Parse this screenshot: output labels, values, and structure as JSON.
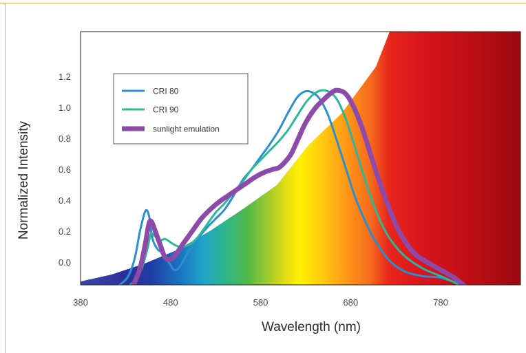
{
  "chart_data": {
    "type": "line",
    "title": "",
    "xlabel": "Wavelength (nm)",
    "ylabel": "Normalized Intensity",
    "xlim": [
      380,
      840
    ],
    "ylim": [
      -0.16,
      1.5
    ],
    "x_ticks": [
      380,
      480,
      580,
      680,
      780
    ],
    "x_tick_labels": [
      "380",
      "480",
      "580",
      "680",
      "780"
    ],
    "y_ticks": [
      0.0,
      0.2,
      0.4,
      0.6,
      0.8,
      1.0,
      1.2
    ],
    "y_tick_labels": [
      "0.0",
      "0.2",
      "0.4",
      "0.6",
      "0.8",
      "1.0",
      "1.2"
    ],
    "grid": false,
    "legend_position": "top-left",
    "background": "visible-spectrum gradient wedge",
    "series": [
      {
        "name": "CRI 80",
        "color": "#2a8fd0",
        "points": [
          [
            420,
            -0.16
          ],
          [
            432,
            -0.1
          ],
          [
            440,
            0.02
          ],
          [
            446,
            0.2
          ],
          [
            452,
            0.33
          ],
          [
            456,
            0.3
          ],
          [
            460,
            0.15
          ],
          [
            466,
            0.08
          ],
          [
            472,
            0.06
          ],
          [
            478,
            0.0
          ],
          [
            484,
            -0.05
          ],
          [
            490,
            -0.03
          ],
          [
            500,
            0.07
          ],
          [
            510,
            0.15
          ],
          [
            520,
            0.22
          ],
          [
            530,
            0.28
          ],
          [
            540,
            0.34
          ],
          [
            550,
            0.43
          ],
          [
            560,
            0.53
          ],
          [
            570,
            0.6
          ],
          [
            580,
            0.68
          ],
          [
            590,
            0.76
          ],
          [
            600,
            0.85
          ],
          [
            610,
            0.96
          ],
          [
            620,
            1.06
          ],
          [
            628,
            1.1
          ],
          [
            636,
            1.1
          ],
          [
            645,
            1.06
          ],
          [
            655,
            0.95
          ],
          [
            665,
            0.78
          ],
          [
            675,
            0.6
          ],
          [
            685,
            0.42
          ],
          [
            695,
            0.28
          ],
          [
            705,
            0.16
          ],
          [
            715,
            0.07
          ],
          [
            725,
            0.0
          ],
          [
            740,
            -0.06
          ],
          [
            760,
            -0.09
          ],
          [
            780,
            -0.1
          ],
          [
            800,
            -0.14
          ],
          [
            808,
            -0.16
          ]
        ]
      },
      {
        "name": "CRI 90",
        "color": "#2bb89a",
        "points": [
          [
            432,
            -0.16
          ],
          [
            440,
            -0.12
          ],
          [
            448,
            -0.04
          ],
          [
            454,
            0.08
          ],
          [
            458,
            0.18
          ],
          [
            462,
            0.17
          ],
          [
            468,
            0.14
          ],
          [
            474,
            0.15
          ],
          [
            482,
            0.12
          ],
          [
            490,
            0.1
          ],
          [
            500,
            0.11
          ],
          [
            510,
            0.16
          ],
          [
            520,
            0.24
          ],
          [
            530,
            0.32
          ],
          [
            540,
            0.38
          ],
          [
            550,
            0.45
          ],
          [
            560,
            0.52
          ],
          [
            570,
            0.6
          ],
          [
            580,
            0.66
          ],
          [
            590,
            0.72
          ],
          [
            600,
            0.78
          ],
          [
            610,
            0.85
          ],
          [
            620,
            0.94
          ],
          [
            630,
            1.03
          ],
          [
            640,
            1.09
          ],
          [
            648,
            1.11
          ],
          [
            656,
            1.1
          ],
          [
            665,
            1.05
          ],
          [
            675,
            0.92
          ],
          [
            685,
            0.74
          ],
          [
            695,
            0.55
          ],
          [
            705,
            0.38
          ],
          [
            715,
            0.24
          ],
          [
            725,
            0.14
          ],
          [
            740,
            0.04
          ],
          [
            760,
            -0.04
          ],
          [
            780,
            -0.09
          ],
          [
            795,
            -0.13
          ],
          [
            805,
            -0.16
          ]
        ]
      },
      {
        "name": "sunlight emulation",
        "color": "#8e4aa8",
        "points": [
          [
            438,
            -0.16
          ],
          [
            446,
            -0.04
          ],
          [
            452,
            0.12
          ],
          [
            456,
            0.25
          ],
          [
            459,
            0.26
          ],
          [
            463,
            0.2
          ],
          [
            468,
            0.12
          ],
          [
            474,
            0.03
          ],
          [
            480,
            0.02
          ],
          [
            486,
            0.05
          ],
          [
            494,
            0.12
          ],
          [
            504,
            0.2
          ],
          [
            514,
            0.28
          ],
          [
            524,
            0.34
          ],
          [
            534,
            0.39
          ],
          [
            544,
            0.43
          ],
          [
            554,
            0.47
          ],
          [
            564,
            0.51
          ],
          [
            574,
            0.55
          ],
          [
            584,
            0.58
          ],
          [
            594,
            0.6
          ],
          [
            600,
            0.61
          ],
          [
            606,
            0.64
          ],
          [
            614,
            0.7
          ],
          [
            622,
            0.8
          ],
          [
            630,
            0.9
          ],
          [
            640,
            0.99
          ],
          [
            650,
            1.05
          ],
          [
            660,
            1.1
          ],
          [
            666,
            1.11
          ],
          [
            674,
            1.09
          ],
          [
            682,
            1.02
          ],
          [
            692,
            0.88
          ],
          [
            702,
            0.7
          ],
          [
            712,
            0.52
          ],
          [
            722,
            0.36
          ],
          [
            732,
            0.22
          ],
          [
            742,
            0.12
          ],
          [
            752,
            0.05
          ],
          [
            765,
            0.0
          ],
          [
            780,
            -0.05
          ],
          [
            795,
            -0.1
          ],
          [
            808,
            -0.16
          ]
        ]
      }
    ]
  }
}
